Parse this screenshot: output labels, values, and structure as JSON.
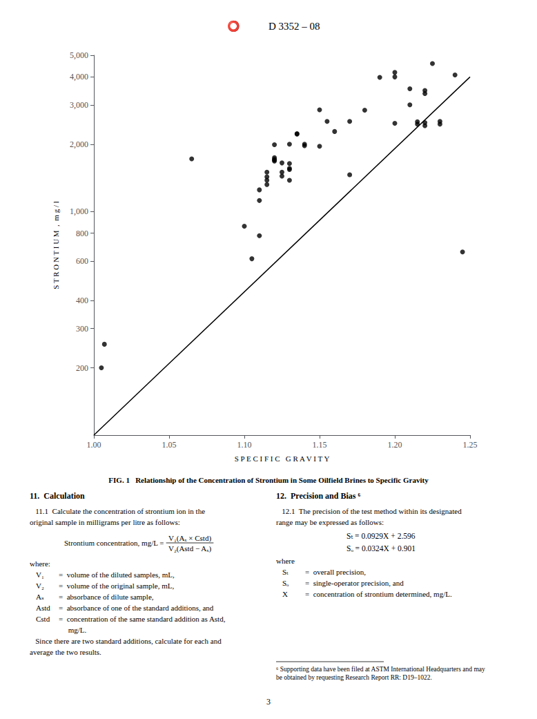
{
  "chart_data": {
    "type": "scatter",
    "title": "FIG. 1   Relationship of the Concentration of Strontium in Some Oilfield Brines to Specific Gravity",
    "x_label": "S P E C I F I C   G R A V I T Y",
    "y_label": "S T R O N T I U M  ,  m g / l",
    "log": "y",
    "grid": false,
    "xlim": [
      1.0,
      1.25
    ],
    "ylim": [
      100,
      5000
    ],
    "xticks": [
      {
        "value": 1.0,
        "label": "1.00"
      },
      {
        "value": 1.05,
        "label": "1.05"
      },
      {
        "value": 1.1,
        "label": "1.10"
      },
      {
        "value": 1.15,
        "label": "1.15"
      },
      {
        "value": 1.2,
        "label": "1.20"
      },
      {
        "value": 1.25,
        "label": "1.25"
      }
    ],
    "yticks": [
      200,
      300,
      400,
      600,
      800,
      {
        "value": 1000,
        "label": "1,000"
      },
      {
        "value": 2000,
        "label": "2,000"
      },
      {
        "value": 3000,
        "label": "3,000"
      },
      {
        "value": 4000,
        "label": "4,000"
      },
      {
        "value": 5000,
        "label": "5,000"
      }
    ],
    "series": [
      {
        "type": "scatter",
        "color": "black",
        "marker": "circle",
        "x": [
          1.005,
          1.007,
          1.065,
          1.1,
          1.105,
          1.11,
          1.11,
          1.11,
          1.115,
          1.115,
          1.115,
          1.115,
          1.12,
          1.12,
          1.12,
          1.12,
          1.12,
          1.125,
          1.125,
          1.125,
          1.13,
          1.13,
          1.13,
          1.13,
          1.13,
          1.135,
          1.135,
          1.14,
          1.14,
          1.15,
          1.15,
          1.155,
          1.16,
          1.17,
          1.17,
          1.18,
          1.19,
          1.2,
          1.2,
          1.2,
          1.21,
          1.21,
          1.215,
          1.215,
          1.22,
          1.22,
          1.22,
          1.22,
          1.225,
          1.23,
          1.23,
          1.24,
          1.245
        ],
        "values": [
          200,
          255,
          1720,
          860,
          615,
          1250,
          1120,
          780,
          1430,
          1380,
          1320,
          1500,
          1680,
          1700,
          1710,
          1740,
          1990,
          1440,
          1500,
          1650,
          1560,
          1540,
          1640,
          2000,
          1380,
          2230,
          2220,
          2000,
          1970,
          2850,
          1960,
          2530,
          2280,
          1460,
          2530,
          2840,
          3980,
          4000,
          4190,
          2480,
          3540,
          3000,
          2520,
          2460,
          2420,
          3480,
          2500,
          3370,
          4590,
          2460,
          2530,
          4080,
          660
        ]
      },
      {
        "type": "line",
        "color": "black",
        "line_style": "solid",
        "x": [
          1.0,
          1.25
        ],
        "values": [
          100,
          3999.45
        ]
      }
    ],
    "annotations": {
      "logo": "⭕",
      "header": "D 3352 – 08",
      "page_number": "3",
      "columns": [
        {
          "heading": "11.  Calculation",
          "lines": [
            "   11.1  Calculate the concentration of strontium ion in the",
            "original sample in milligrams per litre as follows:",
            {
              "lhs": "Strontium concentration, mg/L =",
              "numerator": "V₁(Aₓ × Cstd)",
              "denominator": "V₂(Astd − Aₓ)"
            },
            "where:",
            {
              "symbol": "V₁",
              "meaning": "=  volume of the diluted samples, mL,"
            },
            {
              "symbol": "V₂",
              "meaning": "=  volume of the original sample, mL,"
            },
            {
              "symbol": "Aₛ",
              "meaning": "=  absorbance of dilute sample,"
            },
            {
              "symbol": "Astd",
              "meaning": "=  absorbance of one of the standard additions, and"
            },
            {
              "symbol": "Cstd",
              "meaning": "=  concentration of the same standard addition as Astd,"
            },
            {
              "meaning": "     mg/L."
            },
            "   Since there are two standard additions, calculate for each and",
            "average the two results."
          ]
        },
        {
          "heading": "12.  Precision and Bias ⁶",
          "lines": [
            "   12.1  The precision of the test method within its designated",
            "range may be expressed as follows:",
            {
              "equation": "Sₜ = 0.0929X + 2.596"
            },
            {
              "equation": "Sₒ = 0.0324X + 0.901"
            },
            "where",
            {
              "symbol": "Sₜ",
              "meaning": "=  overall precision,"
            },
            {
              "symbol": "Sₒ",
              "meaning": "=  single-operator precision, and"
            },
            {
              "symbol": "X",
              "meaning": "=  concentration of strontium determined, mg/L."
            }
          ]
        }
      ],
      "footnote": [
        "⁶ Supporting data have been filed at ASTM International Headquarters and may",
        "be obtained by requesting Research Report RR: D19–1022."
      ]
    }
  }
}
